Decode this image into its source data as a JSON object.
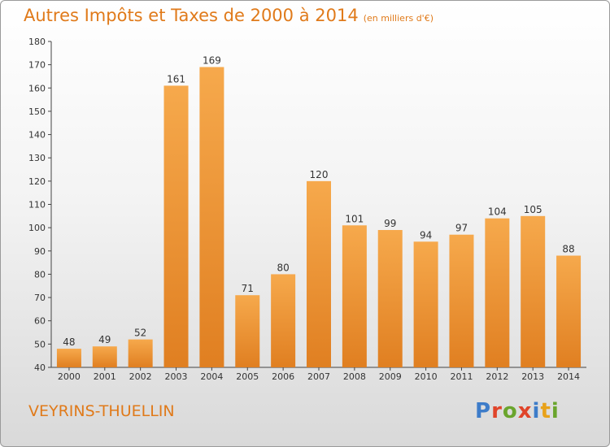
{
  "header": {
    "title": "Autres Impôts et Taxes de 2000 à 2014",
    "unit": "(en milliers d'€)"
  },
  "footer": {
    "city": "VEYRINS-THUELLIN",
    "logo": "Proxiti"
  },
  "colors": {
    "title": "#e07a1a",
    "bar_light": "#f6a94c",
    "bar_dark": "#e07f21",
    "logo_letters": [
      "#3d7cc9",
      "#e0442a",
      "#6aa52d",
      "#e0442a",
      "#3d7cc9",
      "#e8a21a",
      "#6aa52d"
    ]
  },
  "chart_data": {
    "type": "bar",
    "title": "Autres Impôts et Taxes de 2000 à 2014",
    "categories": [
      "2000",
      "2001",
      "2002",
      "2003",
      "2004",
      "2005",
      "2006",
      "2007",
      "2008",
      "2009",
      "2010",
      "2011",
      "2012",
      "2013",
      "2014"
    ],
    "values": [
      48,
      49,
      52,
      161,
      169,
      71,
      80,
      120,
      101,
      99,
      94,
      97,
      104,
      105,
      88
    ],
    "ylim": [
      40,
      180
    ],
    "yticks": [
      40,
      50,
      60,
      70,
      80,
      90,
      100,
      110,
      120,
      130,
      140,
      150,
      160,
      170,
      180
    ],
    "grid": false,
    "data_labels": true
  }
}
